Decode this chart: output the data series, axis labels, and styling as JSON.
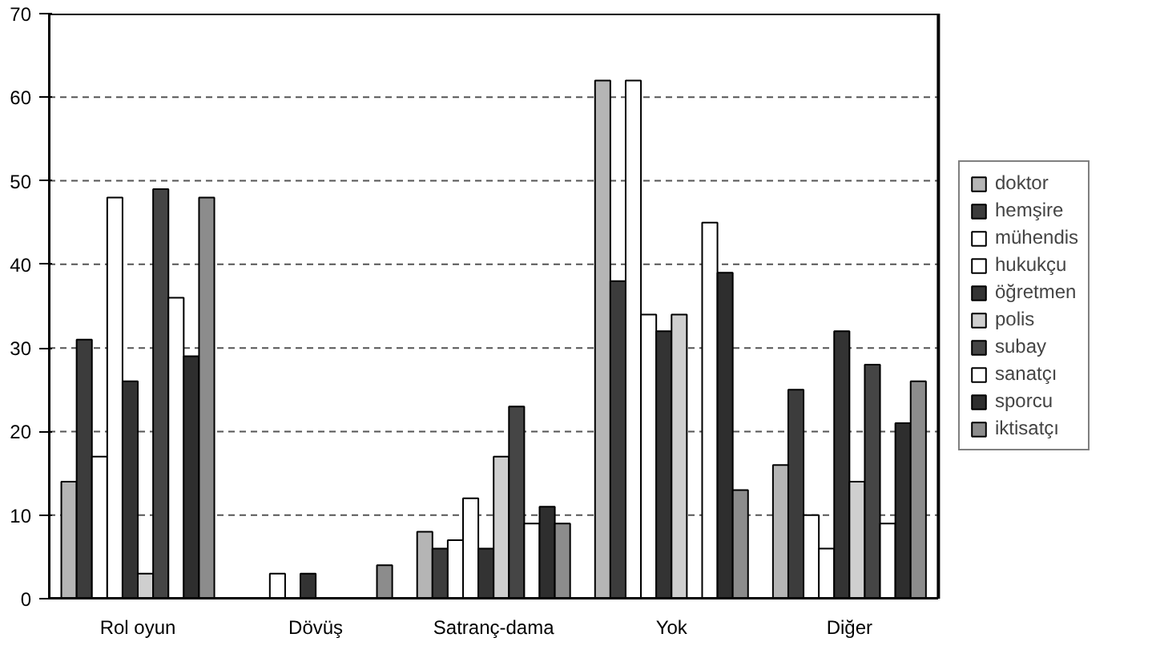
{
  "chart_data": {
    "type": "bar",
    "categories": [
      "Rol oyun",
      "Dövüş",
      "Satranç-dama",
      "Yok",
      "Diğer"
    ],
    "series": [
      {
        "name": "doktor",
        "color": "#b5b5b5",
        "values": [
          14,
          0,
          8,
          62,
          16
        ]
      },
      {
        "name": "hemşire",
        "color": "#3c3c3c",
        "values": [
          31,
          0,
          6,
          38,
          25
        ]
      },
      {
        "name": "mühendis",
        "color": "#ffffff",
        "values": [
          17,
          3,
          7,
          62,
          10
        ]
      },
      {
        "name": "hukukçu",
        "color": "#ffffff",
        "values": [
          48,
          0,
          12,
          34,
          6
        ]
      },
      {
        "name": "öğretmen",
        "color": "#333333",
        "values": [
          26,
          3,
          6,
          32,
          32
        ]
      },
      {
        "name": "polis",
        "color": "#cfcfcf",
        "values": [
          3,
          0,
          17,
          34,
          14
        ]
      },
      {
        "name": "subay",
        "color": "#454545",
        "values": [
          49,
          0,
          23,
          0,
          28
        ]
      },
      {
        "name": "sanatçı",
        "color": "#ffffff",
        "values": [
          36,
          0,
          9,
          45,
          9
        ]
      },
      {
        "name": "sporcu",
        "color": "#2e2e2e",
        "values": [
          29,
          0,
          11,
          39,
          21
        ]
      },
      {
        "name": "iktisatçı",
        "color": "#8c8c8c",
        "values": [
          48,
          4,
          9,
          13,
          26
        ]
      }
    ],
    "ylim": [
      0,
      70
    ],
    "yticks": [
      0,
      10,
      20,
      30,
      40,
      50,
      60,
      70
    ],
    "grid": "y",
    "legend": "right"
  }
}
